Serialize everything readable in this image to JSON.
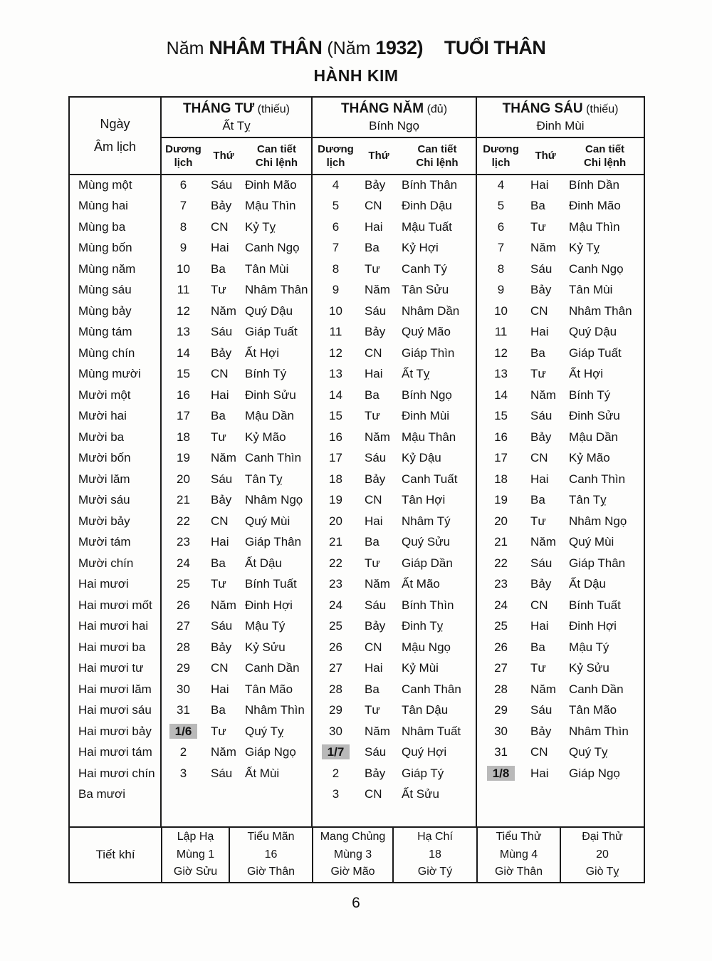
{
  "page": {
    "title": {
      "prefix": "Năm",
      "name": "NHÂM THÂN",
      "paren": "(Năm",
      "year": "1932)",
      "age": "TUỔI THÂN"
    },
    "subtitle": "HÀNH KIM",
    "page_number": "6"
  },
  "table": {
    "corner_header": "Ngày\nÂm lịch",
    "sub_headers": [
      "Dương\nlịch",
      "Thứ",
      "Can tiết\nChi lệnh"
    ],
    "months": [
      {
        "name": "THÁNG TƯ",
        "note": "(thiếu)",
        "can_chi": "Ất Tỵ"
      },
      {
        "name": "THÁNG NĂM",
        "note": "(đủ)",
        "can_chi": "Bính Ngọ"
      },
      {
        "name": "THÁNG SÁU",
        "note": "(thiếu)",
        "can_chi": "Đinh Mùi"
      }
    ],
    "rows": [
      {
        "lunar_day": "Mùng một",
        "m1": [
          "6",
          "Sáu",
          "Đinh Mão"
        ],
        "m2": [
          "4",
          "Bảy",
          "Bính Thân"
        ],
        "m3": [
          "4",
          "Hai",
          "Bính Dần"
        ]
      },
      {
        "lunar_day": "Mùng hai",
        "m1": [
          "7",
          "Bảy",
          "Mậu Thìn"
        ],
        "m2": [
          "5",
          "CN",
          "Đinh Dậu"
        ],
        "m3": [
          "5",
          "Ba",
          "Đinh Mão"
        ]
      },
      {
        "lunar_day": "Mùng ba",
        "m1": [
          "8",
          "CN",
          "Kỷ Tỵ"
        ],
        "m2": [
          "6",
          "Hai",
          "Mậu Tuất"
        ],
        "m3": [
          "6",
          "Tư",
          "Mậu Thìn"
        ]
      },
      {
        "lunar_day": "Mùng bốn",
        "m1": [
          "9",
          "Hai",
          "Canh Ngọ"
        ],
        "m2": [
          "7",
          "Ba",
          "Kỷ Hợi"
        ],
        "m3": [
          "7",
          "Năm",
          "Kỷ Tỵ"
        ]
      },
      {
        "lunar_day": "Mùng năm",
        "m1": [
          "10",
          "Ba",
          "Tân Mùi"
        ],
        "m2": [
          "8",
          "Tư",
          "Canh Tý"
        ],
        "m3": [
          "8",
          "Sáu",
          "Canh Ngọ"
        ]
      },
      {
        "lunar_day": "Mùng sáu",
        "m1": [
          "11",
          "Tư",
          "Nhâm Thân"
        ],
        "m2": [
          "9",
          "Năm",
          "Tân Sửu"
        ],
        "m3": [
          "9",
          "Bảy",
          "Tân Mùi"
        ]
      },
      {
        "lunar_day": "Mùng bảy",
        "m1": [
          "12",
          "Năm",
          "Quý Dậu"
        ],
        "m2": [
          "10",
          "Sáu",
          "Nhâm Dần"
        ],
        "m3": [
          "10",
          "CN",
          "Nhâm Thân"
        ]
      },
      {
        "lunar_day": "Mùng tám",
        "m1": [
          "13",
          "Sáu",
          "Giáp Tuất"
        ],
        "m2": [
          "11",
          "Bảy",
          "Quý Mão"
        ],
        "m3": [
          "11",
          "Hai",
          "Quý Dậu"
        ]
      },
      {
        "lunar_day": "Mùng chín",
        "m1": [
          "14",
          "Bảy",
          "Ất Hợi"
        ],
        "m2": [
          "12",
          "CN",
          "Giáp Thìn"
        ],
        "m3": [
          "12",
          "Ba",
          "Giáp Tuất"
        ]
      },
      {
        "lunar_day": "Mùng mười",
        "m1": [
          "15",
          "CN",
          "Bính Tý"
        ],
        "m2": [
          "13",
          "Hai",
          "Ất Tỵ"
        ],
        "m3": [
          "13",
          "Tư",
          "Ất Hợi"
        ]
      },
      {
        "lunar_day": "Mười một",
        "m1": [
          "16",
          "Hai",
          "Đinh Sửu"
        ],
        "m2": [
          "14",
          "Ba",
          "Bính Ngọ"
        ],
        "m3": [
          "14",
          "Năm",
          "Bính Tý"
        ]
      },
      {
        "lunar_day": "Mười hai",
        "m1": [
          "17",
          "Ba",
          "Mậu Dần"
        ],
        "m2": [
          "15",
          "Tư",
          "Đinh Mùi"
        ],
        "m3": [
          "15",
          "Sáu",
          "Đinh Sửu"
        ]
      },
      {
        "lunar_day": "Mười ba",
        "m1": [
          "18",
          "Tư",
          "Kỷ Mão"
        ],
        "m2": [
          "16",
          "Năm",
          "Mậu Thân"
        ],
        "m3": [
          "16",
          "Bảy",
          "Mậu Dần"
        ]
      },
      {
        "lunar_day": "Mười bốn",
        "m1": [
          "19",
          "Năm",
          "Canh Thìn"
        ],
        "m2": [
          "17",
          "Sáu",
          "Kỷ Dậu"
        ],
        "m3": [
          "17",
          "CN",
          "Kỷ Mão"
        ]
      },
      {
        "lunar_day": "Mười lăm",
        "m1": [
          "20",
          "Sáu",
          "Tân Tỵ"
        ],
        "m2": [
          "18",
          "Bảy",
          "Canh Tuất"
        ],
        "m3": [
          "18",
          "Hai",
          "Canh Thìn"
        ]
      },
      {
        "lunar_day": "Mười sáu",
        "m1": [
          "21",
          "Bảy",
          "Nhâm Ngọ"
        ],
        "m2": [
          "19",
          "CN",
          "Tân Hợi"
        ],
        "m3": [
          "19",
          "Ba",
          "Tân Tỵ"
        ]
      },
      {
        "lunar_day": "Mười bảy",
        "m1": [
          "22",
          "CN",
          "Quý Mùi"
        ],
        "m2": [
          "20",
          "Hai",
          "Nhâm Tý"
        ],
        "m3": [
          "20",
          "Tư",
          "Nhâm Ngọ"
        ]
      },
      {
        "lunar_day": "Mười tám",
        "m1": [
          "23",
          "Hai",
          "Giáp Thân"
        ],
        "m2": [
          "21",
          "Ba",
          "Quý Sửu"
        ],
        "m3": [
          "21",
          "Năm",
          "Quý Mùi"
        ]
      },
      {
        "lunar_day": "Mười chín",
        "m1": [
          "24",
          "Ba",
          "Ất Dậu"
        ],
        "m2": [
          "22",
          "Tư",
          "Giáp Dần"
        ],
        "m3": [
          "22",
          "Sáu",
          "Giáp Thân"
        ]
      },
      {
        "lunar_day": "Hai mươi",
        "m1": [
          "25",
          "Tư",
          "Bính Tuất"
        ],
        "m2": [
          "23",
          "Năm",
          "Ất Mão"
        ],
        "m3": [
          "23",
          "Bảy",
          "Ất Dậu"
        ]
      },
      {
        "lunar_day": "Hai mươi mốt",
        "m1": [
          "26",
          "Năm",
          "Đinh Hợi"
        ],
        "m2": [
          "24",
          "Sáu",
          "Bính Thìn"
        ],
        "m3": [
          "24",
          "CN",
          "Bính Tuất"
        ]
      },
      {
        "lunar_day": "Hai mươi hai",
        "m1": [
          "27",
          "Sáu",
          "Mậu Tý"
        ],
        "m2": [
          "25",
          "Bảy",
          "Đinh Tỵ"
        ],
        "m3": [
          "25",
          "Hai",
          "Đinh Hợi"
        ]
      },
      {
        "lunar_day": "Hai mươi ba",
        "m1": [
          "28",
          "Bảy",
          "Kỷ Sửu"
        ],
        "m2": [
          "26",
          "CN",
          "Mậu Ngọ"
        ],
        "m3": [
          "26",
          "Ba",
          "Mậu Tý"
        ]
      },
      {
        "lunar_day": "Hai mươi tư",
        "m1": [
          "29",
          "CN",
          "Canh Dần"
        ],
        "m2": [
          "27",
          "Hai",
          "Kỷ Mùi"
        ],
        "m3": [
          "27",
          "Tư",
          "Kỷ Sửu"
        ]
      },
      {
        "lunar_day": "Hai mươi lăm",
        "m1": [
          "30",
          "Hai",
          "Tân Mão"
        ],
        "m2": [
          "28",
          "Ba",
          "Canh Thân"
        ],
        "m3": [
          "28",
          "Năm",
          "Canh Dần"
        ]
      },
      {
        "lunar_day": "Hai mươi sáu",
        "m1": [
          "31",
          "Ba",
          "Nhâm Thìn"
        ],
        "m2": [
          "29",
          "Tư",
          "Tân Dậu"
        ],
        "m3": [
          "29",
          "Sáu",
          "Tân Mão"
        ]
      },
      {
        "lunar_day": "Hai mươi bảy",
        "m1": [
          "1/6",
          "Tư",
          "Quý Tỵ"
        ],
        "m2": [
          "30",
          "Năm",
          "Nhâm Tuất"
        ],
        "m3": [
          "30",
          "Bảy",
          "Nhâm Thìn"
        ],
        "hl": "m1"
      },
      {
        "lunar_day": "Hai mươi tám",
        "m1": [
          "2",
          "Năm",
          "Giáp Ngọ"
        ],
        "m2": [
          "1/7",
          "Sáu",
          "Quý Hợi"
        ],
        "m3": [
          "31",
          "CN",
          "Quý Tỵ"
        ],
        "hl": "m2"
      },
      {
        "lunar_day": "Hai mươi chín",
        "m1": [
          "3",
          "Sáu",
          "Ất Mùi"
        ],
        "m2": [
          "2",
          "Bảy",
          "Giáp Tý"
        ],
        "m3": [
          "1/8",
          "Hai",
          "Giáp Ngọ"
        ],
        "hl": "m3"
      },
      {
        "lunar_day": "Ba mươi",
        "m1": [
          "",
          "",
          ""
        ],
        "m2": [
          "3",
          "CN",
          "Ất Sửu"
        ],
        "m3": [
          "",
          "",
          ""
        ]
      }
    ]
  },
  "tiet_khi": {
    "label": "Tiết khí",
    "entries": [
      {
        "name": "Lập Hạ",
        "day": "Mùng 1",
        "hour": "Giờ Sửu"
      },
      {
        "name": "Tiểu Mãn",
        "day": "16",
        "hour": "Giờ Thân"
      },
      {
        "name": "Mang Chủng",
        "day": "Mùng 3",
        "hour": "Giờ Mão"
      },
      {
        "name": "Hạ Chí",
        "day": "18",
        "hour": "Giờ Tý"
      },
      {
        "name": "Tiểu Thử",
        "day": "Mùng 4",
        "hour": "Giờ Thân"
      },
      {
        "name": "Đại Thử",
        "day": "20",
        "hour": "Giò Tỵ"
      }
    ]
  }
}
